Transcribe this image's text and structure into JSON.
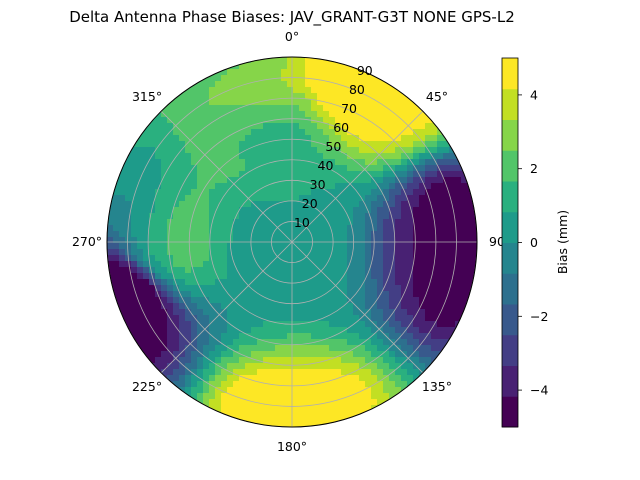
{
  "chart_data": {
    "type": "polar-contour",
    "title": "Delta Antenna Phase Biases: JAV_GRANT-G3T   NONE GPS-L2",
    "azimuth_labels": [
      "0°",
      "45°",
      "90",
      "135°",
      "180°",
      "225°",
      "270°",
      "315°"
    ],
    "azimuth_label_angles_deg": [
      0,
      45,
      90,
      135,
      180,
      225,
      270,
      315
    ],
    "radial_tick_labels": [
      "10",
      "20",
      "30",
      "40",
      "50",
      "60",
      "70",
      "80",
      "90"
    ],
    "radial_tick_values": [
      10,
      20,
      30,
      40,
      50,
      60,
      70,
      80,
      90
    ],
    "radial_range": [
      0,
      90
    ],
    "grid": true,
    "colorbar": {
      "label": "Bias (mm)",
      "range": [
        -5,
        5
      ],
      "ticks": [
        -4,
        -2,
        0,
        2,
        4
      ],
      "tick_labels": [
        "−4",
        "−2",
        "0",
        "2",
        "4"
      ],
      "levels": [
        -5,
        -4.375,
        -3.75,
        -3.125,
        -2.5,
        -1.875,
        -1.25,
        -0.625,
        0,
        0.625,
        1.25,
        1.875,
        2.5,
        3.125,
        3.75,
        4.375,
        5
      ],
      "colors": [
        "#440154",
        "#482173",
        "#433e85",
        "#38598c",
        "#2d708e",
        "#25858e",
        "#1e9b8a",
        "#2ab07f",
        "#52c569",
        "#86d549",
        "#c2df23",
        "#fde725"
      ]
    },
    "field": {
      "description_points": [
        {
          "az": 0,
          "el_dist": 0,
          "bias": 0.5
        },
        {
          "az": 90,
          "el_dist": 75,
          "bias": -4.5
        },
        {
          "az": 30,
          "el_dist": 88,
          "bias": 5
        },
        {
          "az": 180,
          "el_dist": 88,
          "bias": 4.5
        },
        {
          "az": 250,
          "el_dist": 88,
          "bias": -5
        },
        {
          "az": 270,
          "el_dist": 60,
          "bias": 1.5
        },
        {
          "az": 340,
          "el_dist": 60,
          "bias": 2
        }
      ]
    }
  }
}
